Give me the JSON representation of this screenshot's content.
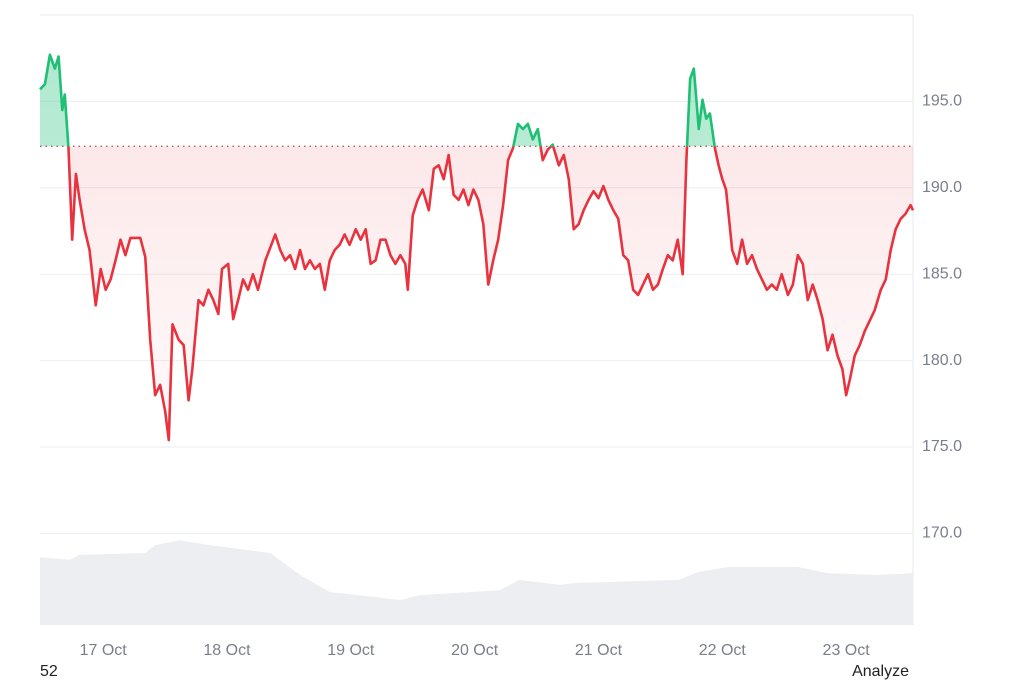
{
  "chart_data": {
    "type": "line",
    "x": [
      16.49,
      16.53,
      16.57,
      16.61,
      16.64,
      16.67,
      16.69,
      16.72,
      16.75,
      16.78,
      16.81,
      16.85,
      16.89,
      16.94,
      16.98,
      17.02,
      17.06,
      17.1,
      17.14,
      17.18,
      17.22,
      17.3,
      17.34,
      17.38,
      17.42,
      17.46,
      17.5,
      17.53,
      17.56,
      17.61,
      17.65,
      17.69,
      17.72,
      17.77,
      17.81,
      17.85,
      17.89,
      17.93,
      17.96,
      18.01,
      18.05,
      18.09,
      18.13,
      18.17,
      18.21,
      18.25,
      18.31,
      18.39,
      18.43,
      18.47,
      18.51,
      18.55,
      18.59,
      18.63,
      18.67,
      18.71,
      18.75,
      18.79,
      18.83,
      18.87,
      18.91,
      18.95,
      18.99,
      19.04,
      19.08,
      19.12,
      19.16,
      19.2,
      19.24,
      19.28,
      19.32,
      19.36,
      19.4,
      19.44,
      19.46,
      19.5,
      19.54,
      19.58,
      19.63,
      19.67,
      19.71,
      19.75,
      19.79,
      19.83,
      19.87,
      19.91,
      19.95,
      19.99,
      20.03,
      20.07,
      20.11,
      20.15,
      20.19,
      20.23,
      20.27,
      20.31,
      20.35,
      20.39,
      20.43,
      20.47,
      20.51,
      20.55,
      20.59,
      20.63,
      20.68,
      20.72,
      20.76,
      20.8,
      20.84,
      20.88,
      20.92,
      20.96,
      21.0,
      21.04,
      21.08,
      21.12,
      21.16,
      21.2,
      21.24,
      21.28,
      21.32,
      21.36,
      21.4,
      21.44,
      21.48,
      21.52,
      21.56,
      21.6,
      21.64,
      21.68,
      21.71,
      21.74,
      21.77,
      21.81,
      21.84,
      21.87,
      21.9,
      21.94,
      21.97,
      22.0,
      22.03,
      22.08,
      22.12,
      22.16,
      22.2,
      22.24,
      22.28,
      22.32,
      22.36,
      22.4,
      22.44,
      22.48,
      22.53,
      22.57,
      22.61,
      22.65,
      22.69,
      22.73,
      22.77,
      22.81,
      22.85,
      22.89,
      22.93,
      22.97,
      23.0,
      23.03,
      23.07,
      23.11,
      23.15,
      23.19,
      23.23,
      23.28,
      23.32,
      23.36,
      23.4,
      23.44,
      23.48,
      23.52,
      23.54
    ],
    "values": [
      195.7,
      196.0,
      197.7,
      196.9,
      197.6,
      194.5,
      195.4,
      192.3,
      187.0,
      190.8,
      189.3,
      187.6,
      186.4,
      183.2,
      185.3,
      184.1,
      184.7,
      185.8,
      187.0,
      186.1,
      187.1,
      187.1,
      186.0,
      181.2,
      178.0,
      178.6,
      177.1,
      175.4,
      182.1,
      181.2,
      180.9,
      177.7,
      179.5,
      183.5,
      183.2,
      184.1,
      183.5,
      182.7,
      185.3,
      185.6,
      182.4,
      183.5,
      184.7,
      184.1,
      185.0,
      184.1,
      185.8,
      187.3,
      186.4,
      185.8,
      186.1,
      185.3,
      186.4,
      185.3,
      185.8,
      185.3,
      185.6,
      184.1,
      185.8,
      186.4,
      186.7,
      187.3,
      186.7,
      187.6,
      187.0,
      187.6,
      185.6,
      185.8,
      187.0,
      187.0,
      186.1,
      185.6,
      186.1,
      185.6,
      184.1,
      188.4,
      189.3,
      189.9,
      188.7,
      191.1,
      191.3,
      190.5,
      191.9,
      189.6,
      189.3,
      189.9,
      189.0,
      189.9,
      189.3,
      187.9,
      184.4,
      185.8,
      187.0,
      189.0,
      191.6,
      192.3,
      193.7,
      193.4,
      193.7,
      192.8,
      193.4,
      191.6,
      192.2,
      192.5,
      191.3,
      191.9,
      190.5,
      187.6,
      187.9,
      188.7,
      189.3,
      189.8,
      189.4,
      190.1,
      189.3,
      188.7,
      188.2,
      186.1,
      185.8,
      184.1,
      183.8,
      184.4,
      185.0,
      184.1,
      184.4,
      185.3,
      186.1,
      185.8,
      187.0,
      185.0,
      191.6,
      196.3,
      196.9,
      193.4,
      195.1,
      194.0,
      194.3,
      192.3,
      191.3,
      190.5,
      189.9,
      186.4,
      185.6,
      187.0,
      185.6,
      186.1,
      185.3,
      184.7,
      184.1,
      184.4,
      184.1,
      185.0,
      183.8,
      184.4,
      186.1,
      185.6,
      183.5,
      184.4,
      183.5,
      182.4,
      180.6,
      181.5,
      180.3,
      179.5,
      178.0,
      178.9,
      180.3,
      180.9,
      181.7,
      182.3,
      182.9,
      184.1,
      184.7,
      186.4,
      187.6,
      188.2,
      188.5,
      189.0,
      188.7
    ],
    "baseline": 192.4,
    "color_up": "#1fbf75",
    "color_down": "#e8333f",
    "volume": {
      "x": [
        16.49,
        16.73,
        16.81,
        17.34,
        17.42,
        17.62,
        17.86,
        18.35,
        18.59,
        18.83,
        19.4,
        19.56,
        20.2,
        20.36,
        20.68,
        20.84,
        21.65,
        21.81,
        22.05,
        22.61,
        22.85,
        23.25,
        23.54
      ],
      "values": [
        11.1,
        10.7,
        11.5,
        11.8,
        13.1,
        13.9,
        13.1,
        11.8,
        8.2,
        5.4,
        4.1,
        4.9,
        5.7,
        7.4,
        6.6,
        6.9,
        7.4,
        8.7,
        9.5,
        9.5,
        8.5,
        8.2,
        8.5
      ],
      "color": "#eceef1"
    },
    "y2lim": [
      0,
      100
    ],
    "ylim": [
      164.7,
      200
    ],
    "yticks": [
      {
        "value": 170,
        "label": "170.0"
      },
      {
        "value": 175,
        "label": "175.0"
      },
      {
        "value": 180,
        "label": "180.0"
      },
      {
        "value": 185,
        "label": "185.0"
      },
      {
        "value": 190,
        "label": "190.0"
      },
      {
        "value": 195,
        "label": "195.0"
      }
    ],
    "xlim": [
      16.49,
      23.54
    ],
    "xticks": [
      {
        "value": 17,
        "label": "17 Oct"
      },
      {
        "value": 18,
        "label": "18 Oct"
      },
      {
        "value": 19,
        "label": "19 Oct"
      },
      {
        "value": 20,
        "label": "20 Oct"
      },
      {
        "value": 21,
        "label": "21 Oct"
      },
      {
        "value": 22,
        "label": "22 Oct"
      },
      {
        "value": 23,
        "label": "23 Oct"
      }
    ],
    "grid": true,
    "footer_left": "52",
    "footer_right": "Analyze"
  }
}
